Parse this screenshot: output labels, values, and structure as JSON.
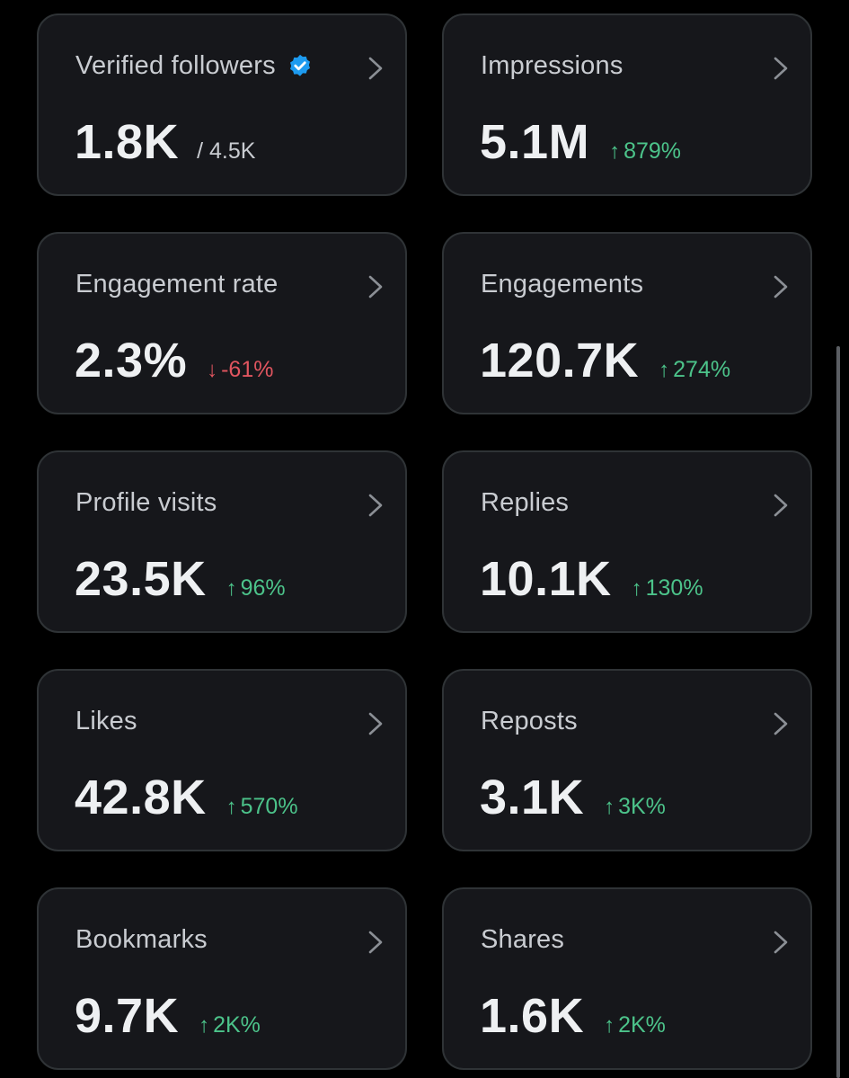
{
  "colors": {
    "background": "#000000",
    "card": "#16171b",
    "card_border": "#2f3336",
    "positive": "#4cc38a",
    "negative": "#e0555f",
    "verified": "#1d9bf0"
  },
  "metrics": [
    {
      "label": "Verified followers",
      "value": "1.8K",
      "sub": "/ 4.5K",
      "icon": "verified-badge-icon"
    },
    {
      "label": "Impressions",
      "value": "5.1M",
      "change": "879%",
      "direction": "up",
      "arrow": "↑"
    },
    {
      "label": "Engagement rate",
      "value": "2.3%",
      "change": "-61%",
      "direction": "down",
      "arrow": "↓"
    },
    {
      "label": "Engagements",
      "value": "120.7K",
      "change": "274%",
      "direction": "up",
      "arrow": "↑"
    },
    {
      "label": "Profile visits",
      "value": "23.5K",
      "change": "96%",
      "direction": "up",
      "arrow": "↑"
    },
    {
      "label": "Replies",
      "value": "10.1K",
      "change": "130%",
      "direction": "up",
      "arrow": "↑"
    },
    {
      "label": "Likes",
      "value": "42.8K",
      "change": "570%",
      "direction": "up",
      "arrow": "↑"
    },
    {
      "label": "Reposts",
      "value": "3.1K",
      "change": "3K%",
      "direction": "up",
      "arrow": "↑"
    },
    {
      "label": "Bookmarks",
      "value": "9.7K",
      "change": "2K%",
      "direction": "up",
      "arrow": "↑"
    },
    {
      "label": "Shares",
      "value": "1.6K",
      "change": "2K%",
      "direction": "up",
      "arrow": "↑"
    }
  ]
}
